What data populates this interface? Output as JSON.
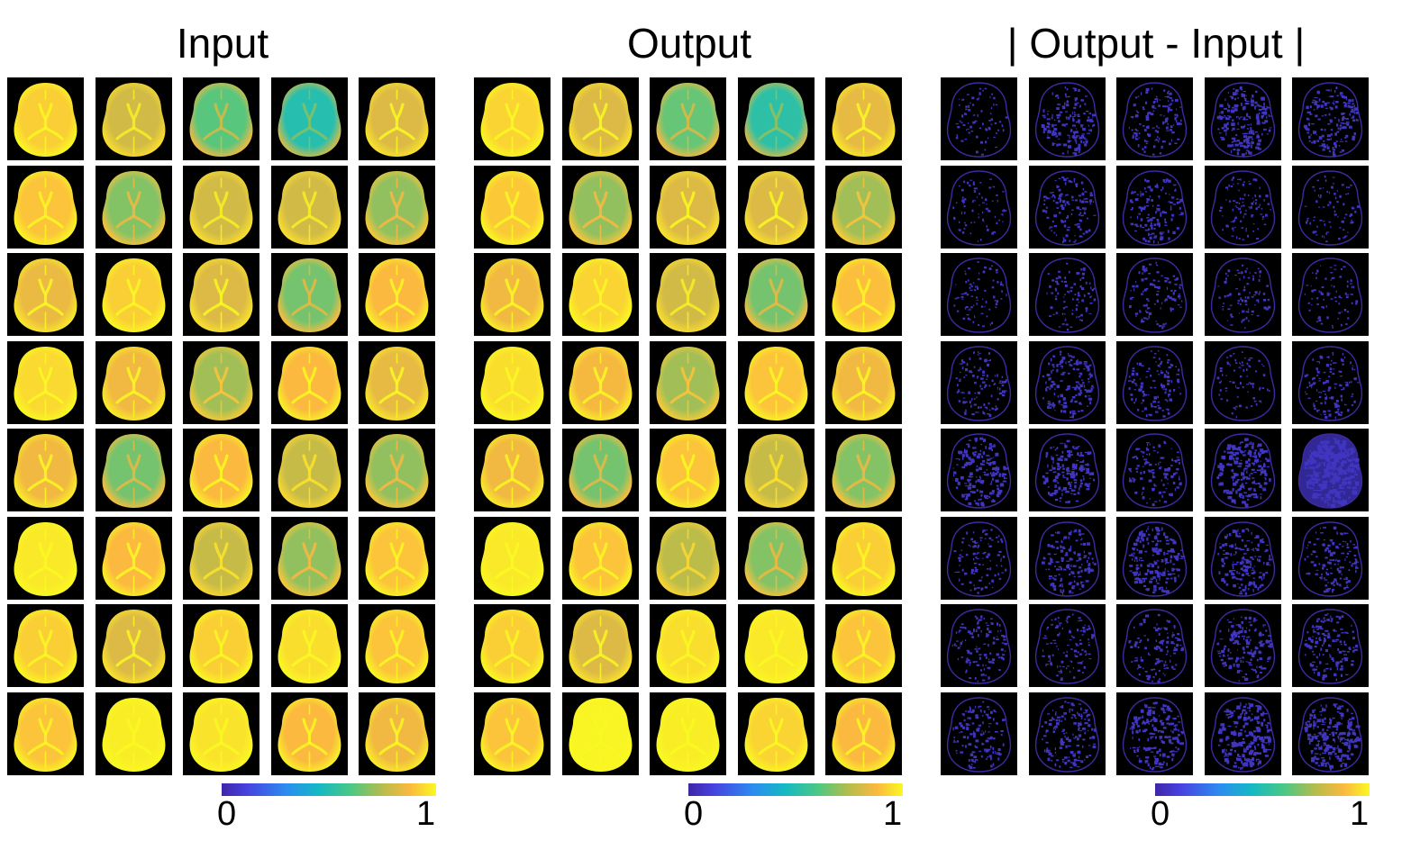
{
  "panels": [
    {
      "id": "input",
      "title": "Input",
      "map": "parula",
      "colorbar": {
        "min_label": "0",
        "max_label": "1"
      },
      "tile_levels": [
        [
          0.92,
          0.8,
          0.62,
          0.5,
          0.82
        ],
        [
          0.9,
          0.68,
          0.8,
          0.8,
          0.7
        ],
        [
          0.85,
          0.92,
          0.82,
          0.66,
          0.88
        ],
        [
          0.94,
          0.86,
          0.72,
          0.88,
          0.84
        ],
        [
          0.86,
          0.66,
          0.88,
          0.78,
          0.7
        ],
        [
          0.97,
          0.88,
          0.78,
          0.7,
          0.9
        ],
        [
          0.92,
          0.82,
          0.92,
          0.95,
          0.9
        ],
        [
          0.9,
          0.98,
          0.96,
          0.88,
          0.86
        ]
      ]
    },
    {
      "id": "output",
      "title": "Output",
      "map": "parula",
      "colorbar": {
        "min_label": "0",
        "max_label": "1"
      },
      "tile_levels": [
        [
          0.93,
          0.82,
          0.64,
          0.52,
          0.84
        ],
        [
          0.91,
          0.7,
          0.82,
          0.82,
          0.72
        ],
        [
          0.86,
          0.93,
          0.8,
          0.66,
          0.89
        ],
        [
          0.95,
          0.87,
          0.72,
          0.9,
          0.86
        ],
        [
          0.86,
          0.66,
          0.9,
          0.78,
          0.68
        ],
        [
          0.97,
          0.9,
          0.76,
          0.68,
          0.92
        ],
        [
          0.92,
          0.82,
          0.95,
          0.97,
          0.9
        ],
        [
          0.9,
          0.99,
          0.98,
          0.93,
          0.88
        ]
      ]
    },
    {
      "id": "difference",
      "title": "| Output - Input |",
      "map": "diff",
      "colorbar": {
        "min_label": "0",
        "max_label": "1"
      },
      "tile_levels": [
        [
          0.15,
          0.45,
          0.35,
          0.55,
          0.45
        ],
        [
          0.15,
          0.3,
          0.35,
          0.2,
          0.15
        ],
        [
          0.15,
          0.2,
          0.25,
          0.2,
          0.15
        ],
        [
          0.3,
          0.4,
          0.3,
          0.15,
          0.3
        ],
        [
          0.5,
          0.45,
          0.3,
          0.6,
          0.9
        ],
        [
          0.25,
          0.4,
          0.5,
          0.45,
          0.35
        ],
        [
          0.3,
          0.25,
          0.3,
          0.45,
          0.4
        ],
        [
          0.35,
          0.4,
          0.5,
          0.65,
          0.65
        ]
      ]
    }
  ]
}
